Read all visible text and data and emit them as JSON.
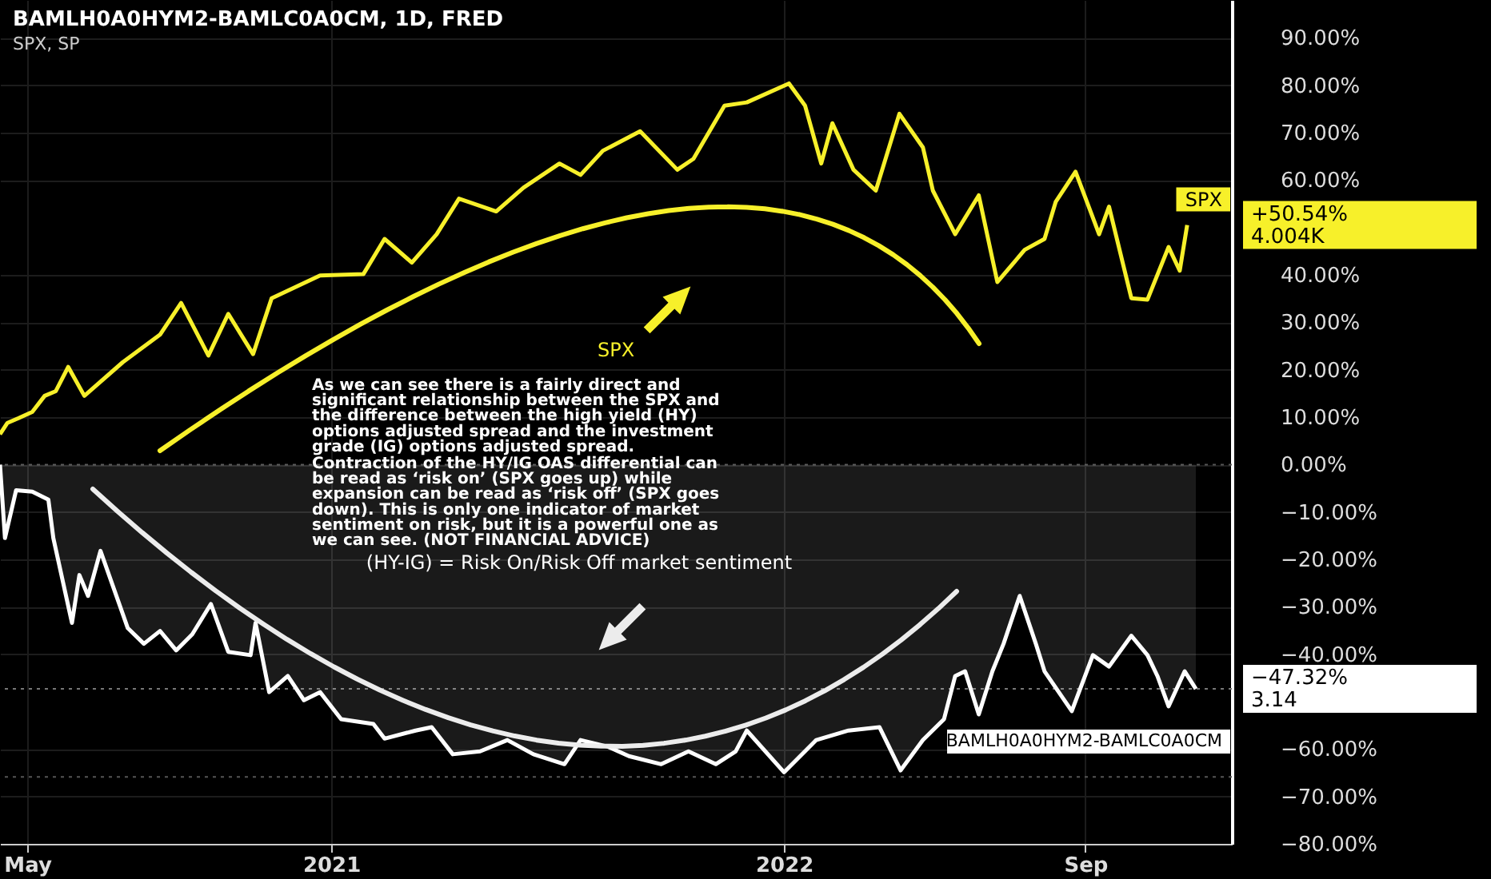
{
  "chart_data": {
    "type": "line",
    "title": "BAMLH0A0HYM2-BAMLC0A0CM, 1D, FRED",
    "subtitle": "SPX, SP",
    "xlim": [
      "2020-04-09",
      "2022-12-28"
    ],
    "xticks": [
      {
        "value": "2020-05-01",
        "label": "May"
      },
      {
        "value": "2021-01-01",
        "label": "2021"
      },
      {
        "value": "2022-01-01",
        "label": "2022"
      },
      {
        "value": "2022-09-01",
        "label": "Sep"
      }
    ],
    "ylim": [
      -80,
      98
    ],
    "yticks": [
      {
        "value": 90,
        "label": "90.00%"
      },
      {
        "value": 80,
        "label": "80.00%"
      },
      {
        "value": 70,
        "label": "70.00%"
      },
      {
        "value": 60,
        "label": "60.00%"
      },
      {
        "value": 40,
        "label": "40.00%"
      },
      {
        "value": 30,
        "label": "30.00%"
      },
      {
        "value": 20,
        "label": "20.00%"
      },
      {
        "value": 10,
        "label": "10.00%"
      },
      {
        "value": 0,
        "label": "0.00%"
      },
      {
        "value": -10,
        "label": "−10.00%"
      },
      {
        "value": -20,
        "label": "−20.00%"
      },
      {
        "value": -30,
        "label": "−30.00%"
      },
      {
        "value": -40,
        "label": "−40.00%"
      },
      {
        "value": -60,
        "label": "−60.00%"
      },
      {
        "value": -70,
        "label": "−70.00%"
      },
      {
        "value": -80,
        "label": "−80.00%"
      }
    ],
    "grid": true,
    "series": [
      {
        "name": "SPX",
        "type": "line",
        "color": "#f7f02a",
        "x": [
          "2020-04-09",
          "2020-04-15",
          "2020-04-24",
          "2020-05-05",
          "2020-05-15",
          "2020-05-24",
          "2020-06-03",
          "2020-06-16",
          "2020-07-17",
          "2020-08-16",
          "2020-09-02",
          "2020-09-24",
          "2020-10-10",
          "2020-10-30",
          "2020-11-14",
          "2020-12-23",
          "2021-01-27",
          "2021-02-13",
          "2021-03-07",
          "2021-03-27",
          "2021-04-14",
          "2021-05-14",
          "2021-06-05",
          "2021-07-04",
          "2021-07-21",
          "2021-08-08",
          "2021-09-07",
          "2021-10-07",
          "2021-10-20",
          "2021-11-14",
          "2021-12-02",
          "2022-01-05",
          "2022-01-18",
          "2022-01-31",
          "2022-02-09",
          "2022-02-26",
          "2022-03-16",
          "2022-04-04",
          "2022-04-23",
          "2022-05-01",
          "2022-05-19",
          "2022-06-07",
          "2022-06-22",
          "2022-07-14",
          "2022-07-30",
          "2022-08-08",
          "2022-08-24",
          "2022-09-12",
          "2022-09-20",
          "2022-10-08",
          "2022-10-21",
          "2022-11-07",
          "2022-11-16",
          "2022-11-22"
        ],
        "values": [
          6.4,
          8.8,
          9.8,
          11.1,
          14.5,
          15.5,
          20.6,
          14.5,
          21.6,
          27.4,
          34.1,
          23.0,
          31.8,
          23.3,
          35.1,
          39.9,
          40.2,
          47.6,
          42.6,
          48.6,
          56.1,
          53.4,
          58.4,
          63.5,
          61.1,
          66.2,
          70.3,
          62.2,
          64.5,
          75.7,
          76.4,
          80.4,
          75.7,
          63.5,
          72.0,
          62.2,
          57.8,
          74.0,
          66.9,
          57.8,
          48.6,
          56.8,
          38.5,
          45.3,
          47.6,
          55.4,
          61.8,
          48.6,
          54.4,
          35.1,
          34.8,
          45.9,
          40.9,
          50.54
        ],
        "value_labels": [
          null,
          null,
          null,
          null,
          null,
          null,
          null,
          null,
          null,
          null,
          null,
          null,
          null,
          null,
          null,
          null,
          null,
          null,
          null,
          null,
          null,
          null,
          null,
          null,
          null,
          null,
          null,
          null,
          null,
          null,
          null,
          null,
          null,
          null,
          null,
          null,
          null,
          null,
          null,
          null,
          null,
          null,
          null,
          null,
          null,
          null,
          null,
          null,
          null,
          null,
          null,
          null,
          null,
          null
        ]
      },
      {
        "name": "BAMLH0A0HYM2-BAMLC0A0CM",
        "type": "area",
        "color": "#ffffff",
        "x": [
          "2020-04-09",
          "2020-04-13",
          "2020-04-22",
          "2020-05-05",
          "2020-05-18",
          "2020-05-22",
          "2020-06-06",
          "2020-06-12",
          "2020-06-19",
          "2020-06-29",
          "2020-07-21",
          "2020-08-03",
          "2020-08-16",
          "2020-08-29",
          "2020-09-11",
          "2020-09-26",
          "2020-10-10",
          "2020-10-28",
          "2020-11-01",
          "2020-11-12",
          "2020-11-27",
          "2020-12-10",
          "2020-12-23",
          "2021-01-09",
          "2021-02-04",
          "2021-02-13",
          "2021-03-10",
          "2021-03-23",
          "2021-04-09",
          "2021-05-01",
          "2021-05-23",
          "2021-06-13",
          "2021-07-08",
          "2021-07-21",
          "2021-08-12",
          "2021-08-29",
          "2021-09-24",
          "2021-10-16",
          "2021-11-07",
          "2021-11-23",
          "2021-12-02",
          "2022-01-01",
          "2022-01-27",
          "2022-02-22",
          "2022-03-19",
          "2022-04-05",
          "2022-04-23",
          "2022-05-10",
          "2022-05-19",
          "2022-05-27",
          "2022-06-07",
          "2022-06-18",
          "2022-06-27",
          "2022-07-10",
          "2022-07-23",
          "2022-07-30",
          "2022-08-21",
          "2022-09-07",
          "2022-09-20",
          "2022-10-08",
          "2022-10-21",
          "2022-10-29",
          "2022-11-07",
          "2022-11-20",
          "2022-11-29"
        ],
        "values": [
          0,
          -15.5,
          -5.4,
          -5.7,
          -7.4,
          -15.5,
          -33.4,
          -23.3,
          -27.7,
          -18.2,
          -34.5,
          -37.8,
          -35.1,
          -39.2,
          -35.8,
          -29.4,
          -39.5,
          -40.2,
          -33.4,
          -48.0,
          -44.6,
          -49.7,
          -48.0,
          -53.7,
          -54.7,
          -57.8,
          -56.1,
          -55.4,
          -61.1,
          -60.5,
          -58.1,
          -61.1,
          -63.2,
          -58.1,
          -59.5,
          -61.5,
          -63.2,
          -60.5,
          -63.2,
          -60.5,
          -56.1,
          -64.9,
          -58.1,
          -56.1,
          -55.4,
          -64.5,
          -58.1,
          -53.7,
          -44.6,
          -43.6,
          -52.7,
          -43.6,
          -37.8,
          -27.7,
          -37.8,
          -43.6,
          -52.0,
          -40.2,
          -42.6,
          -36.1,
          -40.2,
          -44.6,
          -51.0,
          -43.6,
          -47.32
        ],
        "value_labels": [
          null,
          null,
          null,
          null,
          null,
          null,
          null,
          null,
          null,
          null,
          null,
          null,
          null,
          null,
          null,
          null,
          null,
          null,
          null,
          null,
          null,
          null,
          null,
          null,
          null,
          null,
          null,
          null,
          null,
          null,
          null,
          null,
          null,
          null,
          null,
          null,
          null,
          null,
          null,
          null,
          null,
          null,
          null,
          null,
          null,
          null,
          null,
          null,
          null,
          null,
          null,
          null,
          null,
          null,
          null,
          null,
          null,
          null,
          null,
          null,
          null,
          null,
          null,
          null,
          null
        ]
      }
    ],
    "ref_lines": [
      {
        "axis": "y",
        "value": 0,
        "color": "#555555",
        "line_style": "dotted"
      },
      {
        "axis": "y",
        "value": -47.32,
        "color": "#777777",
        "line_style": "dotted"
      },
      {
        "axis": "y",
        "value": -65.9,
        "color": "#555555",
        "line_style": "dotted"
      }
    ],
    "annotations": [
      "SPX",
      "As we can see there is a fairly direct and significant relationship between the SPX and the difference between the high yield (HY) options adjusted spread and the investment grade (IG) options adjusted spread.",
      "Contraction of the HY/IG OAS differential can be read as ‘risk on’ (SPX goes up) while expansion can be read as ‘risk off’ (SPX goes down). This is only one indicator of market sentiment on risk, but it is a powerful one as we can see. (NOT FINANCIAL ADVICE)",
      "(HY-IG) = Risk On/Risk Off market sentiment",
      "+50.54%",
      "4.004K",
      "−47.32%",
      "3.14"
    ]
  }
}
